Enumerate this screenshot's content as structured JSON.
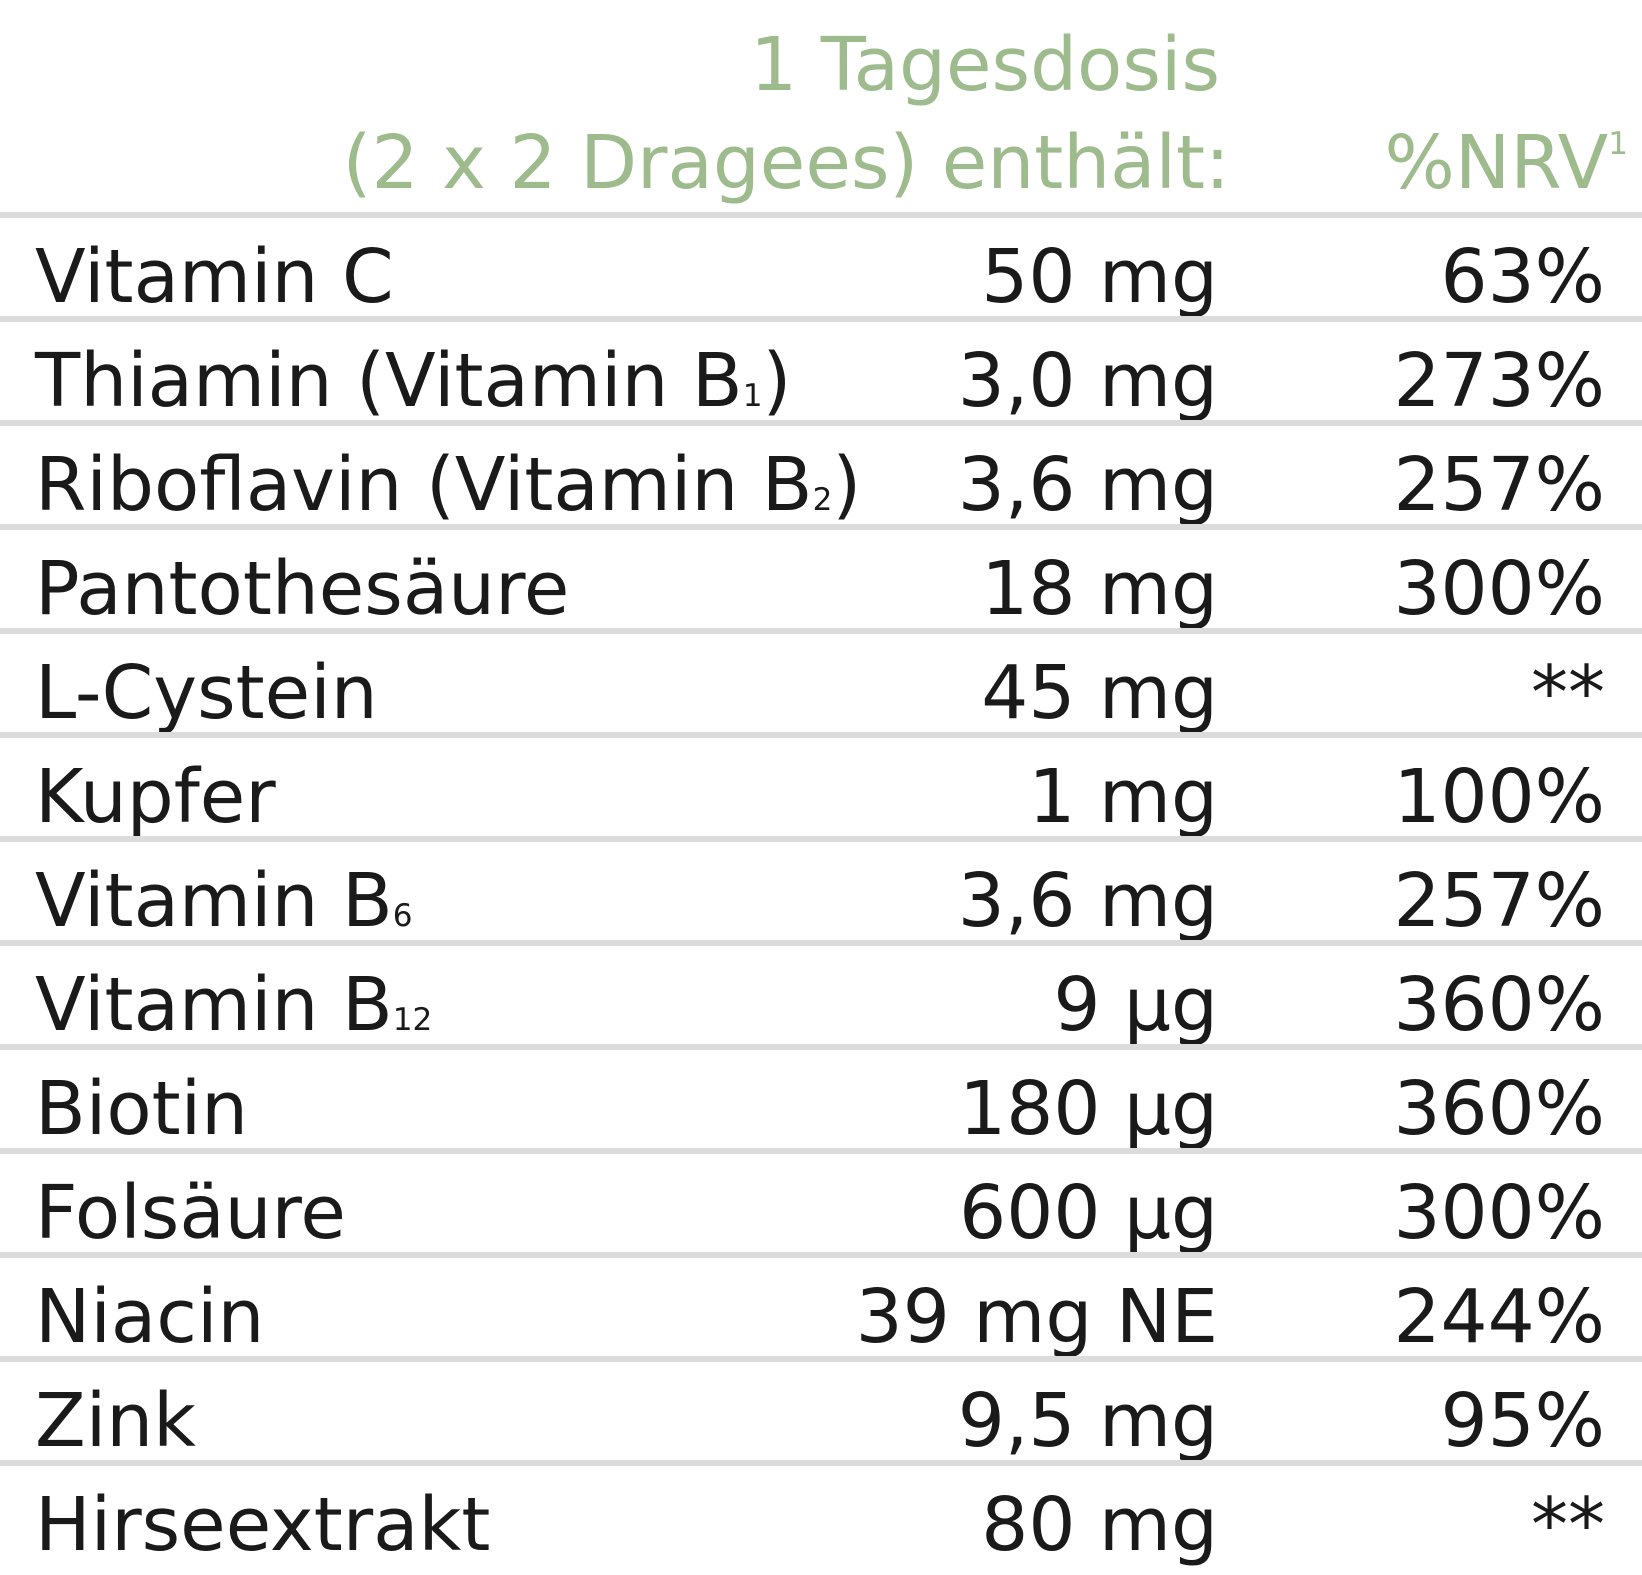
{
  "header": {
    "amount_line1": "1 Tagesdosis",
    "amount_line2": "(2 x 2 Dragees) enthält:",
    "nrv": "%NRV",
    "nrv_sup": "1"
  },
  "table": {
    "rows": [
      {
        "name": "Vitamin C",
        "amount": "50 mg",
        "nrv": "63%"
      },
      {
        "name": "Thiamin (Vitamin B",
        "sub": "1",
        "name_end": ")",
        "amount": "3,0 mg",
        "nrv": "273%"
      },
      {
        "name": "Riboflavin (Vitamin B",
        "sub": "2",
        "name_end": ")",
        "amount": "3,6 mg",
        "nrv": "257%"
      },
      {
        "name": "Pantothesäure",
        "amount": "18 mg",
        "nrv": "300%"
      },
      {
        "name": "L-Cystein",
        "amount": "45 mg",
        "nrv": "**"
      },
      {
        "name": "Kupfer",
        "amount": "1 mg",
        "nrv": "100%"
      },
      {
        "name": "Vitamin B",
        "sub": "6",
        "amount": "3,6 mg",
        "nrv": "257%"
      },
      {
        "name": "Vitamin B",
        "sub": "12",
        "amount": "9 µg",
        "nrv": "360%"
      },
      {
        "name": "Biotin",
        "amount": "180 µg",
        "nrv": "360%"
      },
      {
        "name": "Folsäure",
        "amount": "600 µg",
        "nrv": "300%"
      },
      {
        "name": "Niacin",
        "amount": "39 mg NE",
        "nrv": "244%"
      },
      {
        "name": "Zink",
        "amount": "9,5 mg",
        "nrv": "95%"
      },
      {
        "name": "Hirseextrakt",
        "amount": "80 mg",
        "nrv": "**"
      }
    ]
  }
}
